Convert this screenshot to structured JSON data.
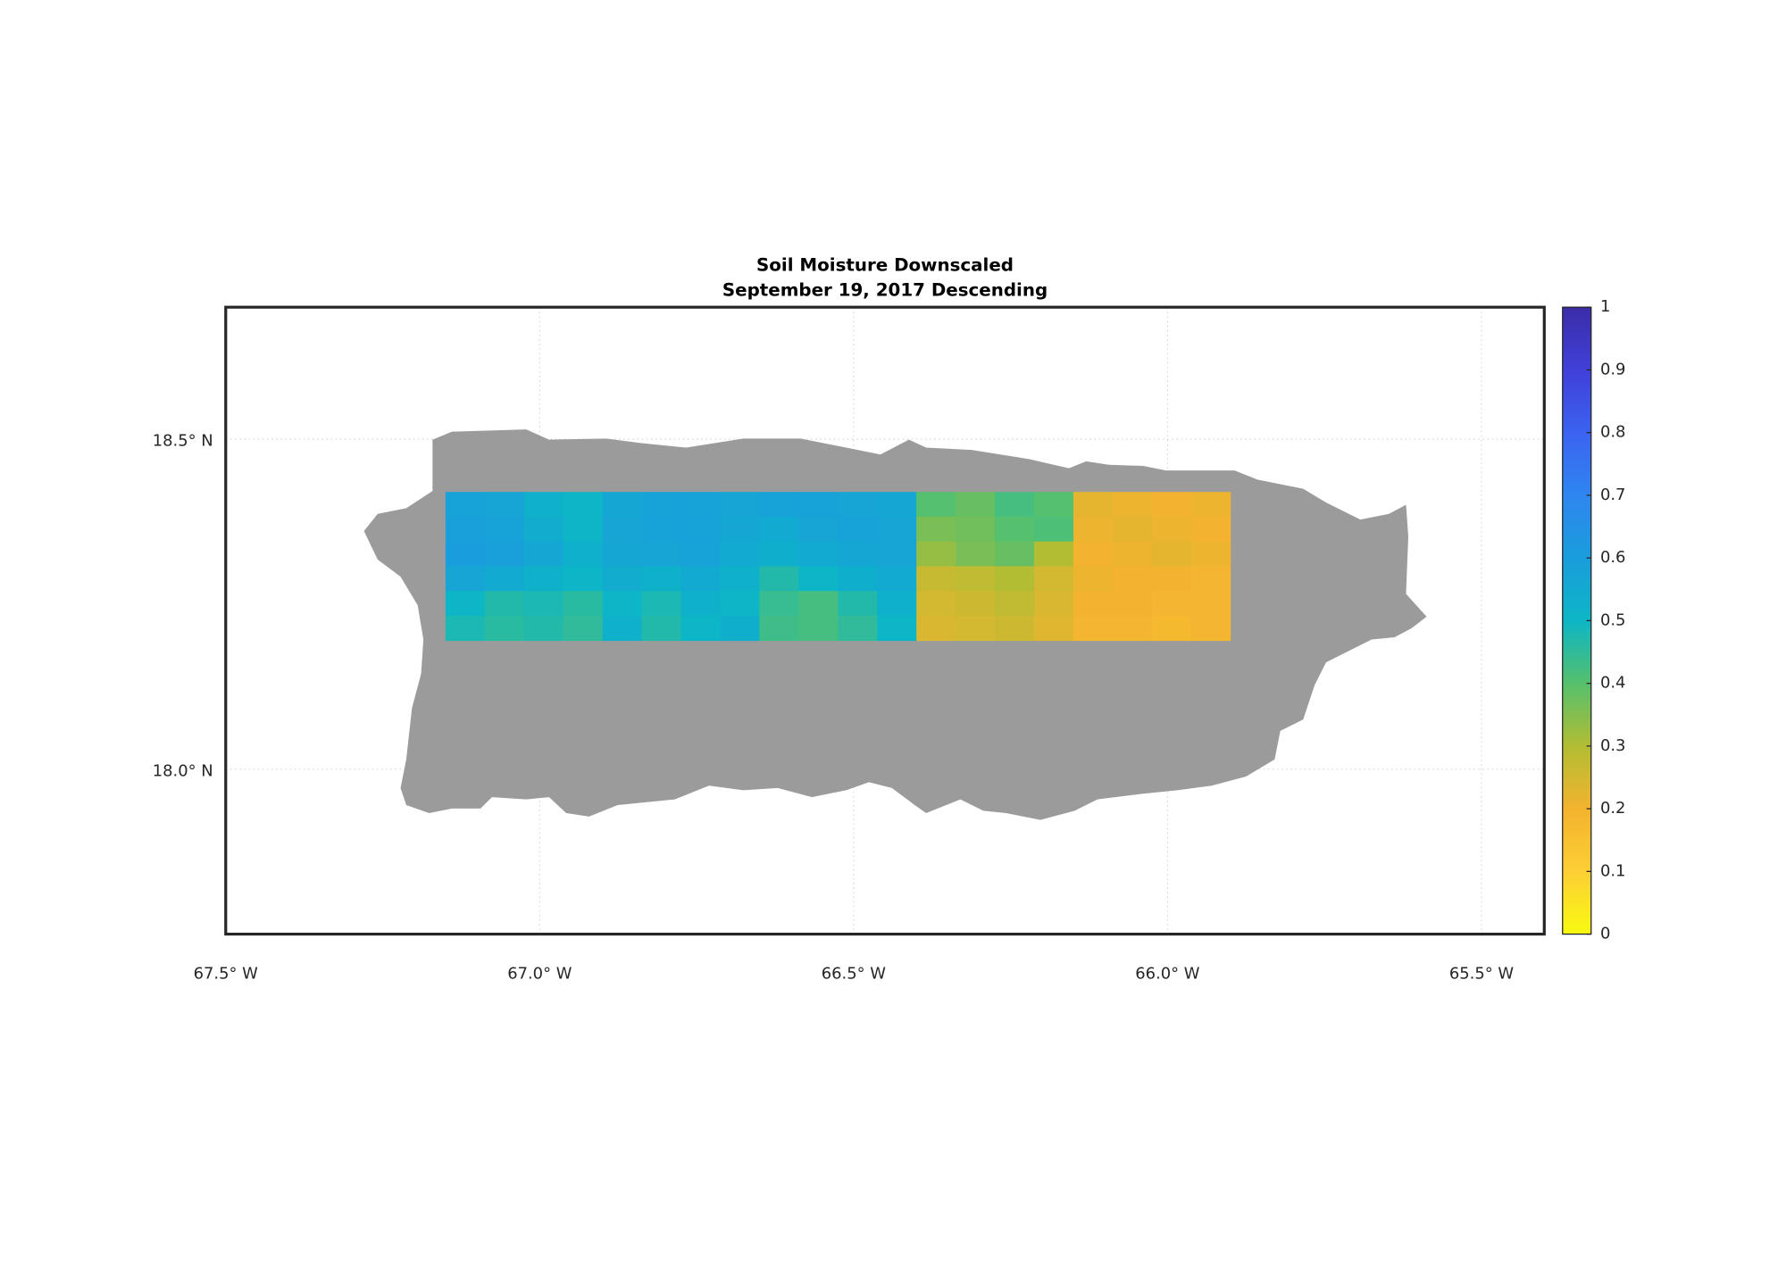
{
  "chart_data": {
    "type": "heatmap",
    "title": "Soil Moisture Downscaled",
    "subtitle": "September 19, 2017 Descending",
    "xlim": [
      -67.5,
      -65.4
    ],
    "ylim": [
      17.75,
      18.7
    ],
    "xticks": [
      {
        "value": -67.5,
        "label": "67.5° W"
      },
      {
        "value": -67.0,
        "label": "67.0° W"
      },
      {
        "value": -66.5,
        "label": "66.5° W"
      },
      {
        "value": -66.0,
        "label": "66.0° W"
      },
      {
        "value": -65.5,
        "label": "65.5° W"
      }
    ],
    "yticks": [
      {
        "value": 18.5,
        "label": "18.5° N"
      },
      {
        "value": 18.0,
        "label": "18.0° N"
      }
    ],
    "grid": true,
    "x": [
      -67.11875,
      -67.05625,
      -66.99375,
      -66.93125,
      -66.86875,
      -66.80625,
      -66.74375,
      -66.68125,
      -66.61875,
      -66.55625,
      -66.49375,
      -66.43125,
      -66.36875,
      -66.30625,
      -66.24375,
      -66.18125,
      -66.11875,
      -66.05625,
      -65.99375,
      -65.93125
    ],
    "y": [
      18.40125,
      18.36375,
      18.32625,
      18.28875,
      18.25125,
      18.21375
    ],
    "z": [
      [
        0.58,
        0.57,
        0.52,
        0.5,
        0.56,
        0.58,
        0.58,
        0.57,
        0.58,
        0.58,
        0.57,
        0.56,
        0.4,
        0.38,
        0.42,
        0.4,
        0.22,
        0.21,
        0.2,
        0.21
      ],
      [
        0.59,
        0.58,
        0.54,
        0.5,
        0.57,
        0.58,
        0.58,
        0.56,
        0.55,
        0.57,
        0.58,
        0.57,
        0.36,
        0.37,
        0.4,
        0.41,
        0.21,
        0.22,
        0.21,
        0.2
      ],
      [
        0.6,
        0.59,
        0.56,
        0.52,
        0.56,
        0.57,
        0.58,
        0.55,
        0.53,
        0.55,
        0.56,
        0.57,
        0.33,
        0.36,
        0.38,
        0.3,
        0.2,
        0.21,
        0.22,
        0.21
      ],
      [
        0.57,
        0.55,
        0.52,
        0.5,
        0.54,
        0.52,
        0.55,
        0.52,
        0.47,
        0.5,
        0.53,
        0.55,
        0.27,
        0.28,
        0.3,
        0.25,
        0.21,
        0.2,
        0.2,
        0.19
      ],
      [
        0.5,
        0.47,
        0.48,
        0.46,
        0.5,
        0.48,
        0.52,
        0.5,
        0.44,
        0.42,
        0.47,
        0.52,
        0.25,
        0.26,
        0.28,
        0.24,
        0.2,
        0.2,
        0.19,
        0.19
      ],
      [
        0.48,
        0.46,
        0.47,
        0.45,
        0.52,
        0.47,
        0.5,
        0.53,
        0.43,
        0.42,
        0.45,
        0.5,
        0.24,
        0.25,
        0.26,
        0.23,
        0.19,
        0.19,
        0.18,
        0.19
      ]
    ],
    "clim": [
      0,
      1
    ],
    "cticks": [
      0,
      0.1,
      0.2,
      0.3,
      0.4,
      0.5,
      0.6,
      0.7,
      0.8,
      0.9,
      1
    ],
    "colormap": [
      "#f8fa12",
      "#fdcf34",
      "#f3b32f",
      "#b2bd33",
      "#55c06d",
      "#0cb6c6",
      "#1a9ddc",
      "#2f86f0",
      "#3b63f0",
      "#4040d8",
      "#3b2ca8"
    ],
    "land_color": "#9b9b9b"
  }
}
